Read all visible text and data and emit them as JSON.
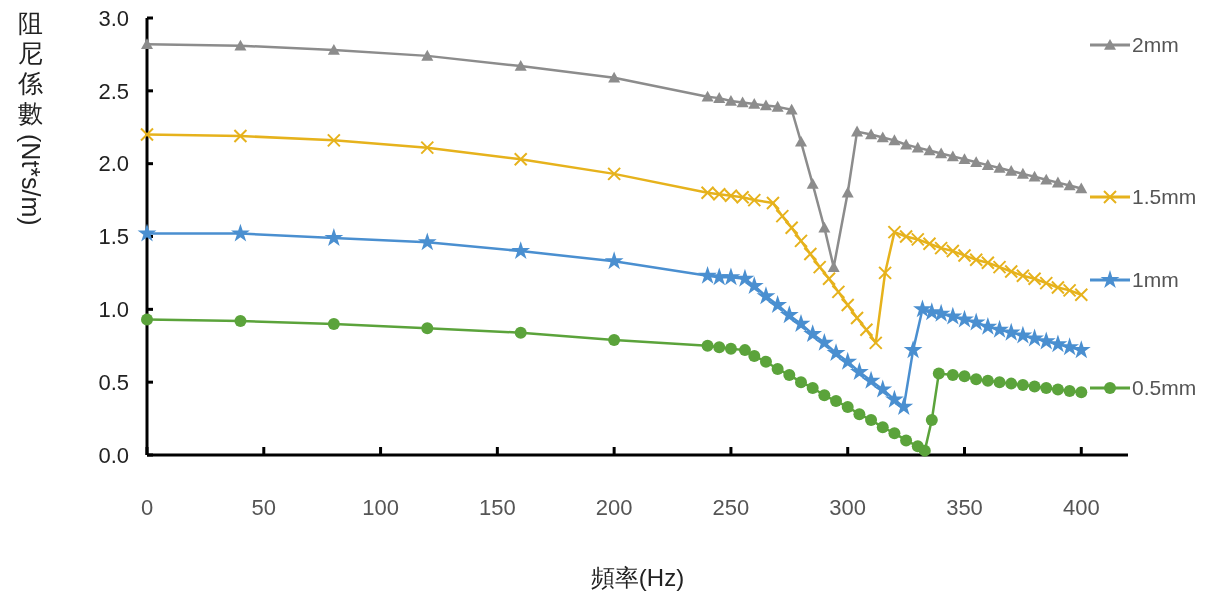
{
  "chart_data": {
    "type": "line",
    "xlabel": "頻率(Hz)",
    "ylabel": "阻尼係數(Nt*s/m)",
    "xlim": [
      0,
      420
    ],
    "xticks": [
      0,
      50,
      100,
      150,
      200,
      250,
      300,
      350,
      400
    ],
    "ylim": [
      0,
      3
    ],
    "yticks": [
      {
        "value": 0,
        "label": "0.0"
      },
      {
        "value": 0.5,
        "label": "0.5"
      },
      {
        "value": 1,
        "label": "1.0"
      },
      {
        "value": 1.5,
        "label": "1.5"
      },
      {
        "value": 2,
        "label": "2.0"
      },
      {
        "value": 2.5,
        "label": "2.5"
      },
      {
        "value": 3,
        "label": "3.0"
      }
    ],
    "grid": false,
    "legend": "right",
    "line_style": "solid",
    "series": [
      {
        "name": "2mm",
        "color": "#8c8c8c",
        "marker": "triangle",
        "x": [
          0,
          40,
          80,
          120,
          160,
          200,
          240,
          245,
          250,
          255,
          260,
          265,
          270,
          276,
          280,
          285,
          290,
          294,
          300,
          304,
          310,
          315,
          320,
          325,
          330,
          335,
          340,
          345,
          350,
          355,
          360,
          365,
          370,
          375,
          380,
          385,
          390,
          395,
          400
        ],
        "values": [
          2.82,
          2.81,
          2.78,
          2.74,
          2.67,
          2.59,
          2.46,
          2.45,
          2.43,
          2.42,
          2.41,
          2.4,
          2.39,
          2.37,
          2.15,
          1.86,
          1.56,
          1.29,
          1.8,
          2.22,
          2.2,
          2.18,
          2.16,
          2.13,
          2.11,
          2.09,
          2.07,
          2.05,
          2.03,
          2.01,
          1.99,
          1.97,
          1.95,
          1.93,
          1.91,
          1.89,
          1.87,
          1.85,
          1.83
        ]
      },
      {
        "name": "1.5mm",
        "color": "#e6b21c",
        "marker": "cross",
        "x": [
          0,
          40,
          80,
          120,
          160,
          200,
          240,
          245,
          250,
          255,
          260,
          268,
          272,
          276,
          280,
          284,
          288,
          292,
          296,
          300,
          304,
          308,
          312,
          316,
          320,
          325,
          330,
          335,
          340,
          345,
          350,
          355,
          360,
          365,
          370,
          375,
          380,
          385,
          390,
          395,
          400
        ],
        "values": [
          2.2,
          2.19,
          2.16,
          2.11,
          2.03,
          1.93,
          1.8,
          1.79,
          1.78,
          1.77,
          1.75,
          1.73,
          1.64,
          1.56,
          1.47,
          1.38,
          1.29,
          1.21,
          1.12,
          1.03,
          0.94,
          0.86,
          0.77,
          1.25,
          1.53,
          1.5,
          1.48,
          1.45,
          1.42,
          1.4,
          1.37,
          1.34,
          1.32,
          1.29,
          1.26,
          1.23,
          1.21,
          1.18,
          1.15,
          1.13,
          1.1
        ]
      },
      {
        "name": "1mm",
        "color": "#4a8fd0",
        "marker": "star",
        "x": [
          0,
          40,
          80,
          120,
          160,
          200,
          240,
          245,
          250,
          256,
          260,
          265,
          270,
          275,
          280,
          285,
          290,
          295,
          300,
          305,
          310,
          315,
          320,
          324,
          328,
          332,
          336,
          340,
          345,
          350,
          355,
          360,
          365,
          370,
          375,
          380,
          385,
          390,
          395,
          400
        ],
        "values": [
          1.52,
          1.52,
          1.49,
          1.46,
          1.4,
          1.33,
          1.23,
          1.22,
          1.22,
          1.21,
          1.16,
          1.09,
          1.03,
          0.96,
          0.9,
          0.83,
          0.77,
          0.7,
          0.64,
          0.57,
          0.51,
          0.45,
          0.38,
          0.33,
          0.72,
          1.0,
          0.98,
          0.97,
          0.95,
          0.93,
          0.91,
          0.88,
          0.86,
          0.84,
          0.82,
          0.8,
          0.78,
          0.76,
          0.74,
          0.72
        ]
      },
      {
        "name": "0.5mm",
        "color": "#5ba33b",
        "marker": "circle",
        "x": [
          0,
          40,
          80,
          120,
          160,
          200,
          240,
          245,
          250,
          256,
          260,
          265,
          270,
          275,
          280,
          285,
          290,
          295,
          300,
          305,
          310,
          315,
          320,
          325,
          330,
          333,
          336,
          339,
          345,
          350,
          355,
          360,
          365,
          370,
          375,
          380,
          385,
          390,
          395,
          400
        ],
        "values": [
          0.93,
          0.92,
          0.9,
          0.87,
          0.84,
          0.79,
          0.75,
          0.74,
          0.73,
          0.72,
          0.68,
          0.64,
          0.59,
          0.55,
          0.5,
          0.46,
          0.41,
          0.37,
          0.33,
          0.28,
          0.24,
          0.19,
          0.15,
          0.1,
          0.06,
          0.03,
          0.24,
          0.56,
          0.55,
          0.54,
          0.52,
          0.51,
          0.5,
          0.49,
          0.48,
          0.47,
          0.46,
          0.45,
          0.44,
          0.43
        ]
      }
    ]
  }
}
